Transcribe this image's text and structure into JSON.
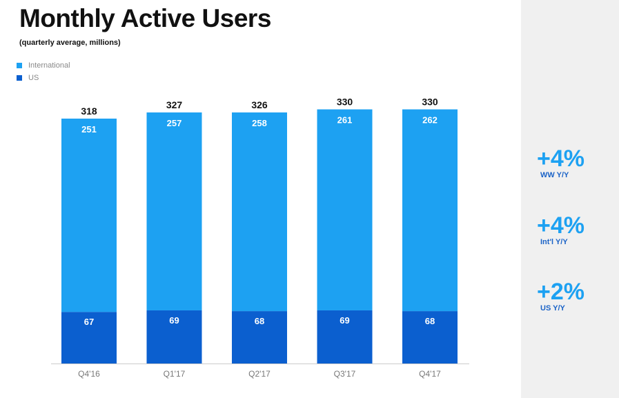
{
  "title": "Monthly Active Users",
  "subtitle": "(quarterly average, millions)",
  "legend": [
    {
      "label": "International",
      "color": "#1da1f2"
    },
    {
      "label": "US",
      "color": "#0b5fcf"
    }
  ],
  "stats": [
    {
      "value": "+4%",
      "label": "WW Y/Y"
    },
    {
      "value": "+4%",
      "label": "Int'l Y/Y"
    },
    {
      "value": "+2%",
      "label": "US Y/Y"
    }
  ],
  "chart_data": {
    "type": "bar",
    "stacked": true,
    "title": "Monthly Active Users",
    "subtitle": "(quarterly average, millions)",
    "categories": [
      "Q4'16",
      "Q1'17",
      "Q2'17",
      "Q3'17",
      "Q4'17"
    ],
    "series": [
      {
        "name": "US",
        "values": [
          67,
          69,
          68,
          69,
          68
        ],
        "color": "#0b5fcf"
      },
      {
        "name": "International",
        "values": [
          251,
          257,
          258,
          261,
          262
        ],
        "color": "#1da1f2"
      }
    ],
    "totals": [
      318,
      327,
      326,
      330,
      330
    ],
    "legend": "top-left",
    "grid": false
  }
}
